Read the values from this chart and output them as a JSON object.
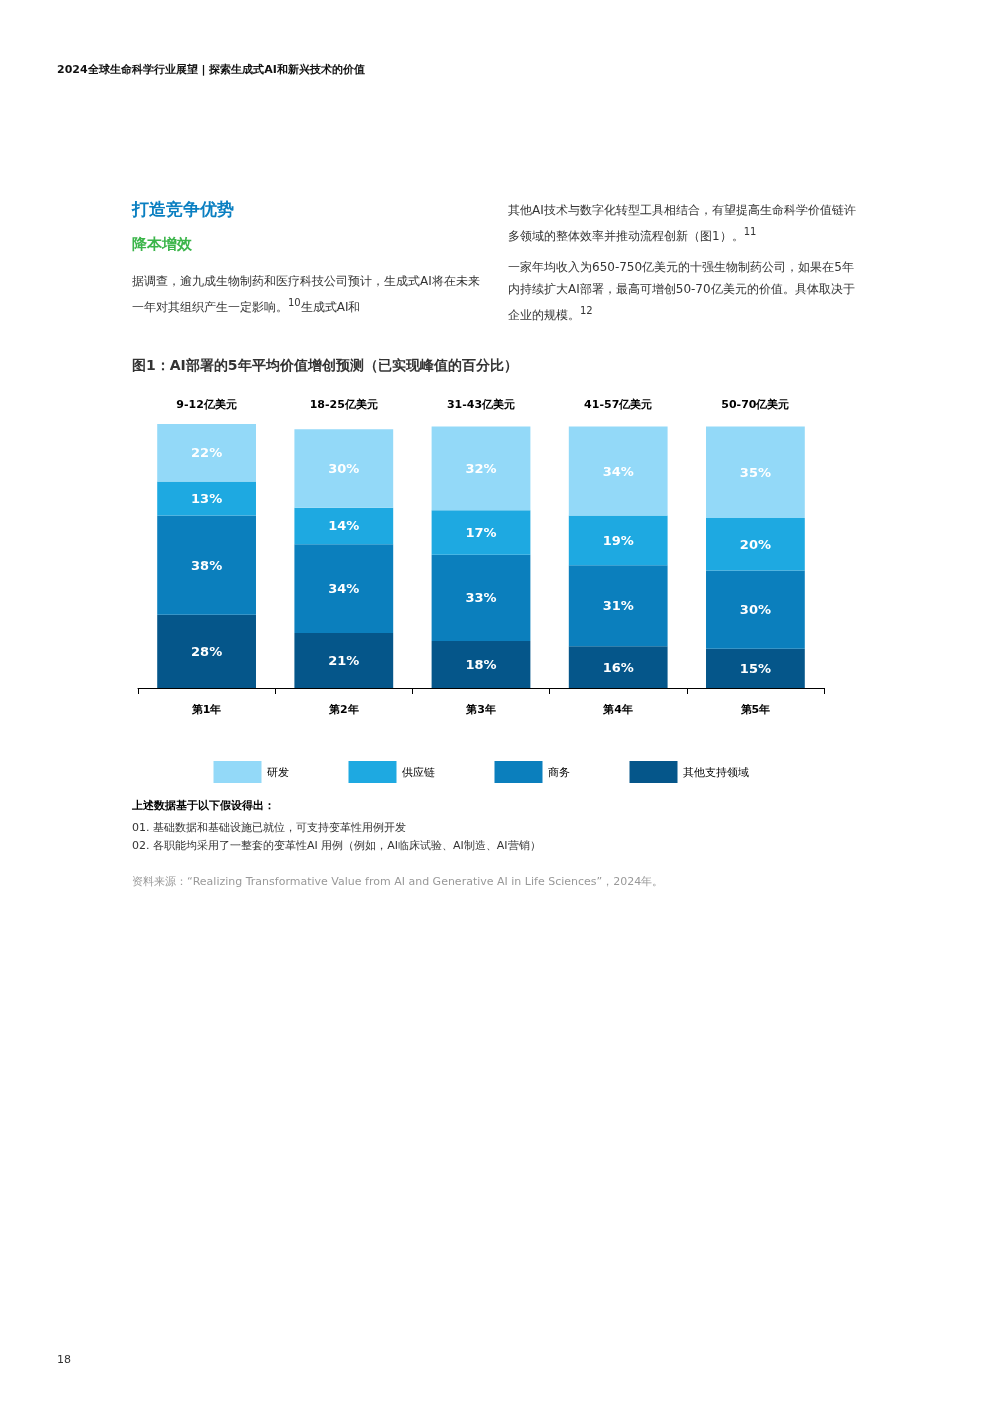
{
  "chart_data": {
    "type": "bar",
    "stacked": true,
    "legend": "bottom",
    "title": "图1：AI部署的5年平均价值增创预测（已实现峰值的百分比）",
    "categories": [
      "第1年",
      "第2年",
      "第3年",
      "第4年",
      "第5年"
    ],
    "series": [
      {
        "name": "其他支持领域",
        "color": "#05568a",
        "values": [
          28,
          21,
          18,
          16,
          15
        ],
        "value_labels": [
          "28%",
          "21%",
          "18%",
          "16%",
          "15%"
        ]
      },
      {
        "name": "商务",
        "color": "#0b7fbd",
        "values": [
          38,
          34,
          33,
          31,
          30
        ],
        "value_labels": [
          "38%",
          "34%",
          "33%",
          "31%",
          "30%"
        ]
      },
      {
        "name": "供应链",
        "color": "#1ea9e1",
        "values": [
          13,
          14,
          17,
          19,
          20
        ],
        "value_labels": [
          "13%",
          "14%",
          "17%",
          "19%",
          "20%"
        ]
      },
      {
        "name": "研发",
        "color": "#93d9f8",
        "values": [
          22,
          30,
          32,
          34,
          35
        ],
        "value_labels": [
          "22%",
          "30%",
          "32%",
          "34%",
          "35%"
        ]
      }
    ],
    "annotations": [
      "2024全球生命科学行业展望 | 探索生成式AI和新兴技术的价值",
      "打造竞争优势",
      "降本增效",
      "据调查，逾九成生物制药和医疗科技公司预计，生成式AI将在未来一年对其组织产生一定影响。$^{10}$生成式AI和",
      "其他AI技术与数字化转型工具相结合，有望提高生命科学价值链许多领域的整体效率并推动流程创新（图1）。$^{11}$",
      "一家年均收入为650-750亿美元的十强生物制药公司，如果在5年内持续扩大AI部署，最高可增创50-70亿美元的价值。具体取决于企业的规模。$^{12}$",
      "9-12亿美元",
      "18-25亿美元",
      "31-43亿美元",
      "41-57亿美元",
      "50-70亿美元",
      "上述数据基于以下假设得出：",
      "01.  基础数据和基础设施已就位，可支持变革性用例开发",
      "02.  各职能均采用了一整套的变革性AI 用例（例如，AI临床试验、AI制造、AI营销）",
      "资料来源：“Realizing Transformative Value from AI and Generative AI in Life Sciences”，2024年。",
      "18"
    ]
  }
}
